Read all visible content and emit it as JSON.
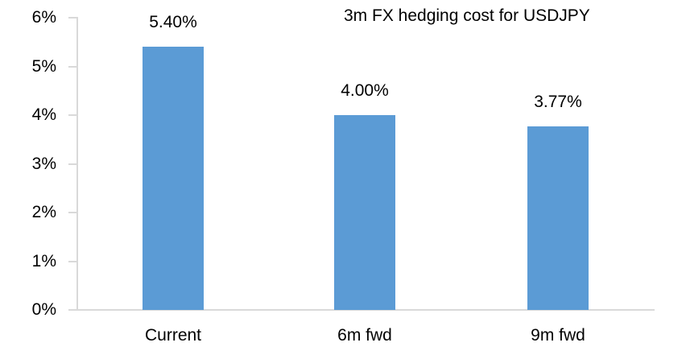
{
  "chart_data": {
    "type": "bar",
    "title": "3m FX hedging cost for USDJPY",
    "categories": [
      "Current",
      "6m fwd",
      "9m fwd"
    ],
    "values": [
      5.4,
      4.0,
      3.77
    ],
    "data_labels": [
      "5.40%",
      "4.00%",
      "3.77%"
    ],
    "y_ticks": [
      "6%",
      "5%",
      "4%",
      "3%",
      "2%",
      "1%",
      "0%"
    ],
    "ylim": [
      0,
      6
    ],
    "grid": false,
    "legend": false,
    "colors": {
      "bar": "#5b9bd5",
      "axis": "#d9d9d9",
      "text": "#000000",
      "background": "#ffffff"
    }
  }
}
